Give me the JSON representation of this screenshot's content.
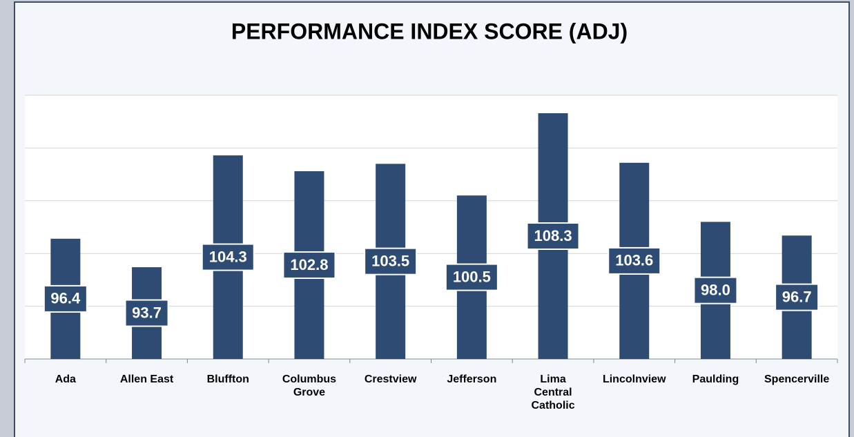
{
  "chart_data": {
    "type": "bar",
    "title": "PERFORMANCE INDEX SCORE (ADJ)",
    "categories": [
      "Ada",
      "Allen East",
      "Bluffton",
      "Columbus Grove",
      "Crestview",
      "Jefferson",
      "Lima Central Catholic",
      "Lincolnview",
      "Paulding",
      "Spencerville"
    ],
    "values": [
      96.4,
      93.7,
      104.3,
      102.8,
      103.5,
      100.5,
      108.3,
      103.6,
      98.0,
      96.7
    ],
    "value_labels": [
      "96.4",
      "93.7",
      "104.3",
      "102.8",
      "103.5",
      "100.5",
      "108.3",
      "103.6",
      "98.0",
      "96.7"
    ],
    "color": "#2e4b73",
    "ylim": [
      85,
      110
    ],
    "yticks": [
      85,
      90,
      95,
      100,
      105,
      110
    ],
    "grid": true
  }
}
